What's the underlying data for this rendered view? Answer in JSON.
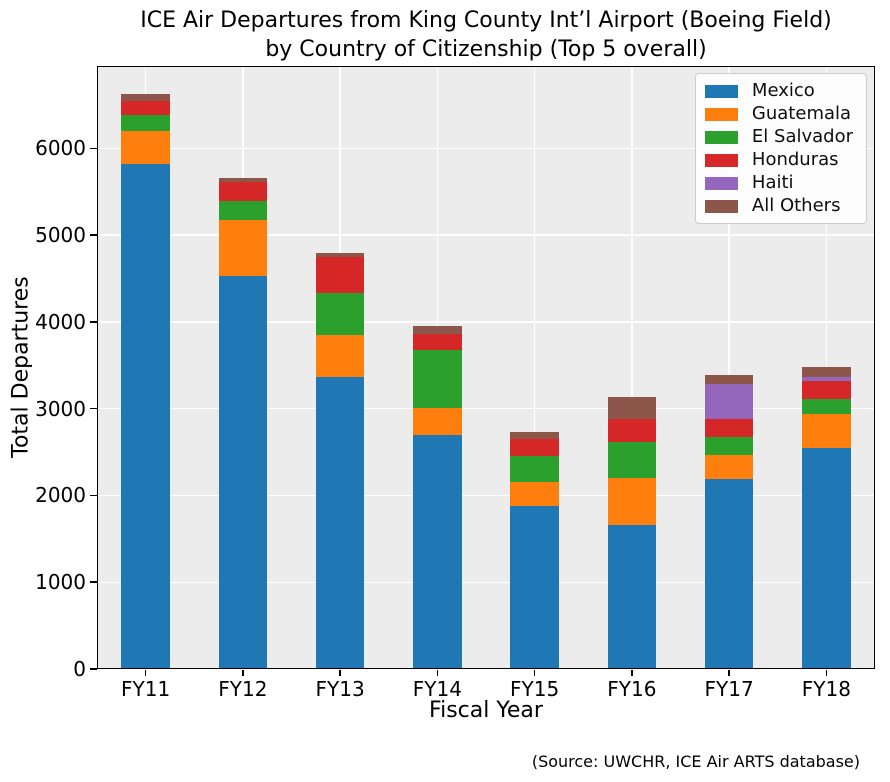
{
  "figure": {
    "title_line1": "ICE Air Departures from King County Int’l Airport (Boeing Field)",
    "title_line2": "by Country of Citizenship (Top 5 overall)",
    "source_note": "(Source: UWCHR, ICE Air ARTS database)"
  },
  "chart_data": {
    "type": "bar",
    "stacked": true,
    "title": "ICE Air Departures from King County Int’l Airport (Boeing Field) by Country of Citizenship (Top 5 overall)",
    "xlabel": "Fiscal Year",
    "ylabel": "Total Departures",
    "categories": [
      "FY11",
      "FY12",
      "FY13",
      "FY14",
      "FY15",
      "FY16",
      "FY17",
      "FY18"
    ],
    "series": [
      {
        "name": "Mexico",
        "color": "#1f77b4",
        "values": [
          5820,
          4530,
          3370,
          2695,
          1880,
          1660,
          2195,
          2545
        ]
      },
      {
        "name": "Guatemala",
        "color": "#ff7f0e",
        "values": [
          380,
          650,
          480,
          315,
          280,
          545,
          270,
          390
        ]
      },
      {
        "name": "El Salvador",
        "color": "#2ca02c",
        "values": [
          190,
          215,
          480,
          665,
          300,
          410,
          210,
          175
        ]
      },
      {
        "name": "Honduras",
        "color": "#d62728",
        "values": [
          160,
          215,
          415,
          190,
          190,
          270,
          210,
          215
        ]
      },
      {
        "name": "Haiti",
        "color": "#9467bd",
        "values": [
          0,
          0,
          0,
          0,
          0,
          0,
          405,
          40
        ]
      },
      {
        "name": "All Others",
        "color": "#8c564b",
        "values": [
          80,
          55,
          45,
          85,
          80,
          250,
          100,
          120
        ]
      }
    ],
    "totals": [
      6630,
      5665,
      4790,
      3950,
      2730,
      3135,
      3390,
      3485
    ],
    "ylim": [
      0,
      6950
    ],
    "yticks": [
      0,
      1000,
      2000,
      3000,
      4000,
      5000,
      6000
    ],
    "grid": true,
    "legend_position": "upper right",
    "plot_bg_color": "#ececec",
    "grid_color": "#ffffff",
    "spine_color": "#000000"
  }
}
